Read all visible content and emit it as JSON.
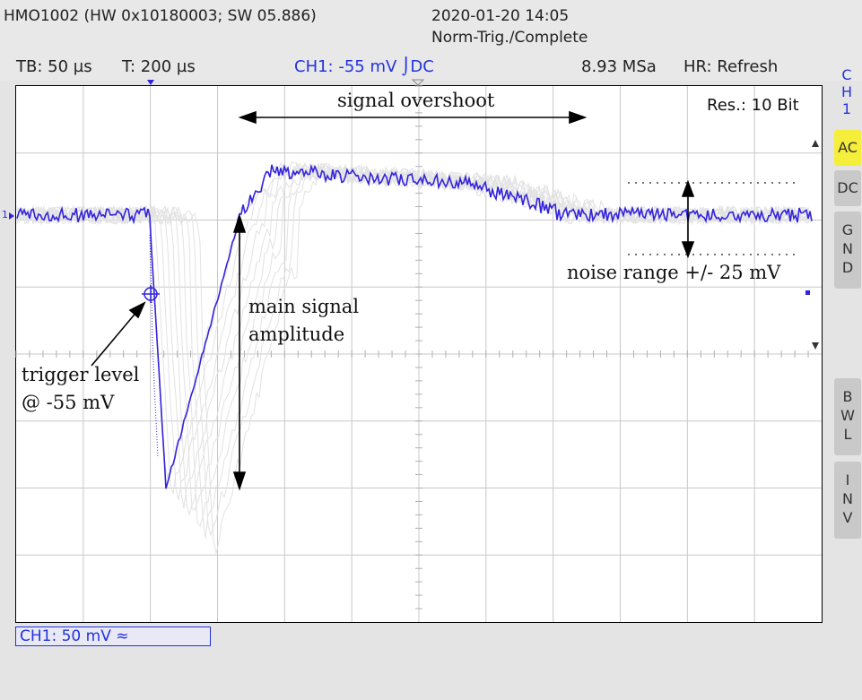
{
  "header": {
    "device": "HMO1002 (HW 0x10180003; SW 05.886)",
    "datetime": "2020-01-20 14:05",
    "mode": "Norm-Trig./Complete"
  },
  "statusbar": {
    "timebase": "TB: 50 µs",
    "trigger_time": "T: 200 µs",
    "trigger_info": "CH1: -55 mV ⌡DC",
    "sample_rate": "8.93 MSa",
    "hr_mode": "HR: Refresh"
  },
  "display": {
    "resolution": "Res.: 10 Bit",
    "channel_marker": "1",
    "trace_color": "#3322dd"
  },
  "sidebar": {
    "channel_label": [
      "C",
      "H",
      "1"
    ],
    "ac": "AC",
    "dc": "DC",
    "gnd": [
      "G",
      "N",
      "D"
    ],
    "bwl": [
      "B",
      "W",
      "L"
    ],
    "inv": [
      "I",
      "N",
      "V"
    ]
  },
  "footer": {
    "ch1_scale": "CH1: 50 mV ≈"
  },
  "annotations": {
    "signal_overshoot": "signal overshoot",
    "main_signal_line1": "main  signal",
    "main_signal_line2": "amplitude",
    "trigger_line1": "trigger  level",
    "trigger_line2": "@ -55 mV",
    "noise_range": "noise range +/- 25 mV"
  }
}
